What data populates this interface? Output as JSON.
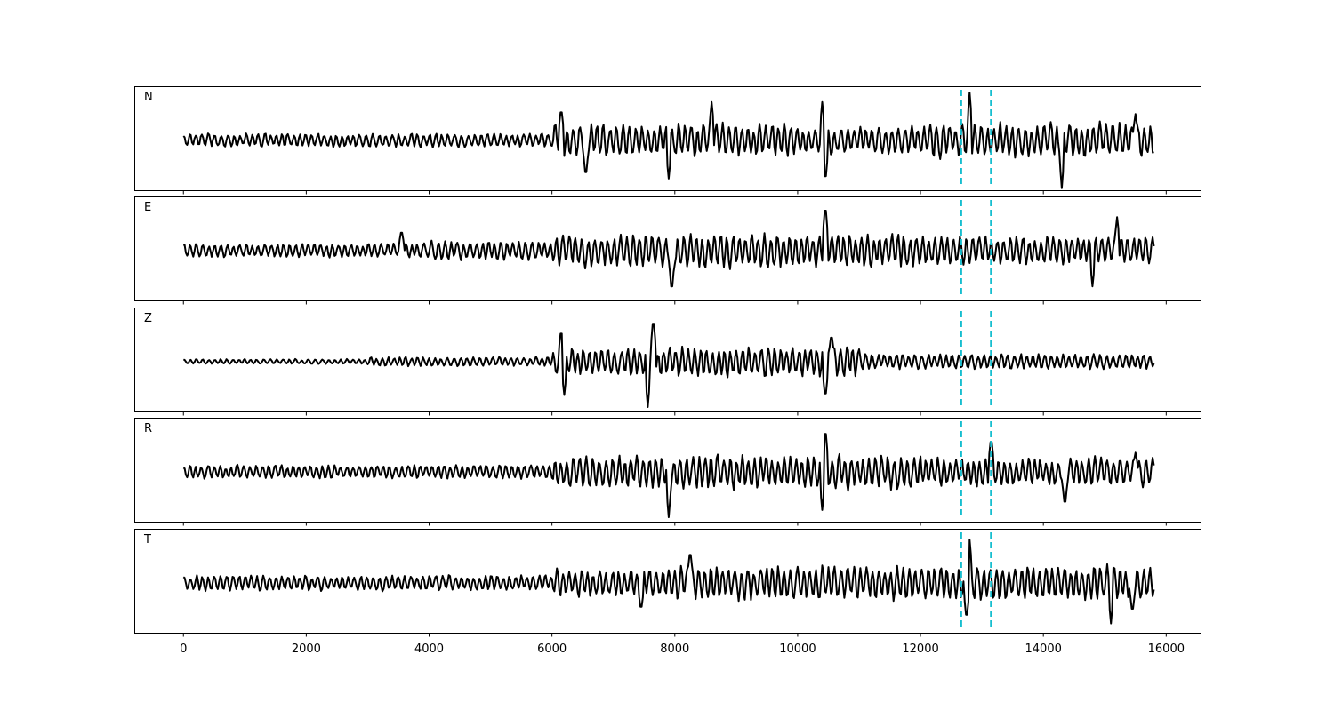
{
  "chart_data": {
    "type": "line",
    "title": "",
    "xlabel": "",
    "ylabel": "",
    "xlim": [
      -800,
      16560
    ],
    "x_ticks": [
      "0",
      "2000",
      "4000",
      "6000",
      "8000",
      "10000",
      "12000",
      "14000",
      "16000"
    ],
    "x_tick_values": [
      0,
      2000,
      4000,
      6000,
      8000,
      10000,
      12000,
      14000,
      16000
    ],
    "n_samples": 15800,
    "trace_color": "#000000",
    "marker_color": "#17becf",
    "markers": [
      12660,
      13150
    ],
    "grid": false,
    "legend": "none",
    "panels": [
      {
        "label": "N",
        "segments": [
          {
            "x": [
              0,
              6000
            ],
            "amp": 0.22
          },
          {
            "x": [
              6000,
              8000
            ],
            "amp": 0.5
          },
          {
            "x": [
              8000,
              10000
            ],
            "amp": 0.55
          },
          {
            "x": [
              10000,
              12000
            ],
            "amp": 0.45
          },
          {
            "x": [
              12000,
              15800
            ],
            "amp": 0.55
          }
        ],
        "spikes": [
          [
            6150,
            0.7
          ],
          [
            6550,
            -0.8
          ],
          [
            7900,
            -0.8
          ],
          [
            8600,
            0.8
          ],
          [
            10450,
            -0.9
          ],
          [
            10400,
            0.8
          ],
          [
            12800,
            1.0
          ],
          [
            14300,
            -1.0
          ],
          [
            15500,
            0.55
          ]
        ]
      },
      {
        "label": "E",
        "segments": [
          {
            "x": [
              0,
              4000
            ],
            "amp": 0.22
          },
          {
            "x": [
              4000,
              6000
            ],
            "amp": 0.3
          },
          {
            "x": [
              6000,
              8000
            ],
            "amp": 0.5
          },
          {
            "x": [
              8000,
              12000
            ],
            "amp": 0.55
          },
          {
            "x": [
              12000,
              15800
            ],
            "amp": 0.45
          }
        ],
        "spikes": [
          [
            3550,
            0.45
          ],
          [
            7950,
            -0.9
          ],
          [
            10450,
            1.0
          ],
          [
            14800,
            -0.75
          ],
          [
            15200,
            0.7
          ]
        ]
      },
      {
        "label": "Z",
        "segments": [
          {
            "x": [
              0,
              3000
            ],
            "amp": 0.08
          },
          {
            "x": [
              3000,
              6000
            ],
            "amp": 0.15
          },
          {
            "x": [
              6000,
              8000
            ],
            "amp": 0.45
          },
          {
            "x": [
              8000,
              11000
            ],
            "amp": 0.5
          },
          {
            "x": [
              11000,
              15800
            ],
            "amp": 0.25
          }
        ],
        "spikes": [
          [
            6150,
            0.7
          ],
          [
            6200,
            -0.7
          ],
          [
            7560,
            -0.95
          ],
          [
            7650,
            0.95
          ],
          [
            10450,
            -0.8
          ],
          [
            10550,
            0.6
          ]
        ]
      },
      {
        "label": "R",
        "segments": [
          {
            "x": [
              0,
              6000
            ],
            "amp": 0.22
          },
          {
            "x": [
              6000,
              8000
            ],
            "amp": 0.5
          },
          {
            "x": [
              8000,
              12000
            ],
            "amp": 0.55
          },
          {
            "x": [
              12000,
              15800
            ],
            "amp": 0.45
          }
        ],
        "spikes": [
          [
            7900,
            -0.95
          ],
          [
            10450,
            0.95
          ],
          [
            10400,
            -0.8
          ],
          [
            13150,
            0.75
          ],
          [
            14350,
            -0.75
          ],
          [
            15500,
            0.4
          ]
        ]
      },
      {
        "label": "T",
        "segments": [
          {
            "x": [
              0,
              6000
            ],
            "amp": 0.25
          },
          {
            "x": [
              6000,
              8000
            ],
            "amp": 0.45
          },
          {
            "x": [
              8000,
              12000
            ],
            "amp": 0.55
          },
          {
            "x": [
              12000,
              15800
            ],
            "amp": 0.55
          }
        ],
        "spikes": [
          [
            7450,
            -0.6
          ],
          [
            8250,
            0.7
          ],
          [
            12800,
            0.9
          ],
          [
            12750,
            -0.8
          ],
          [
            15100,
            -0.85
          ],
          [
            15450,
            -0.65
          ]
        ]
      }
    ]
  }
}
